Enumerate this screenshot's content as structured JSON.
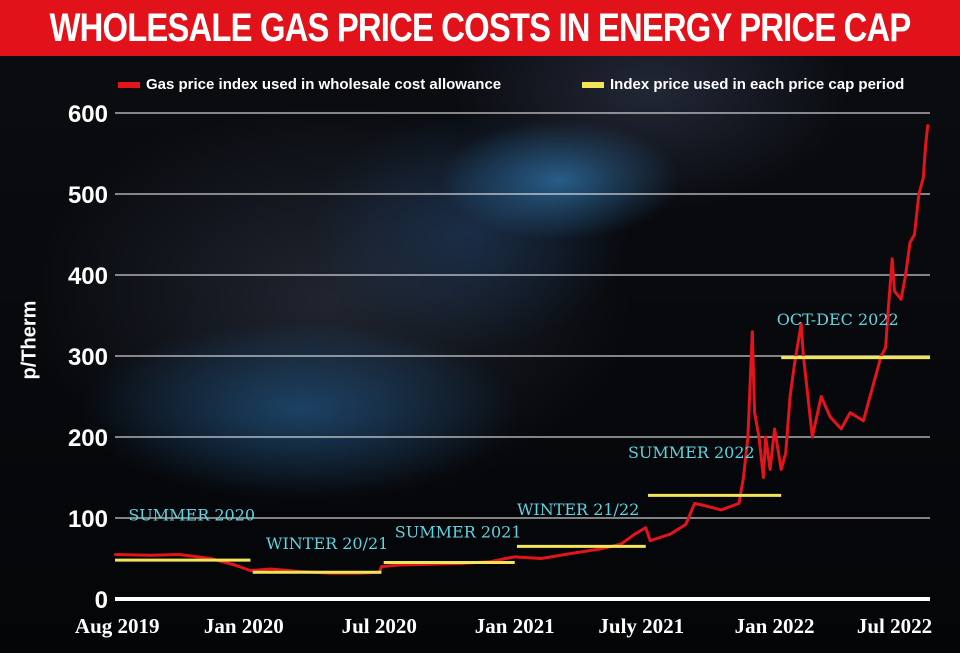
{
  "chart_data": {
    "type": "line",
    "title": "WHOLESALE GAS PRICE COSTS IN ENERGY PRICE CAP",
    "xlabel": "",
    "ylabel": "p/Therm",
    "ylim": [
      0,
      600
    ],
    "yticks": [
      0,
      100,
      200,
      300,
      400,
      500,
      600
    ],
    "xlim": [
      -0.1,
      36.6
    ],
    "x_unit": "months since Aug 2019",
    "xticks": [
      {
        "x": 0,
        "label": "Aug 2019"
      },
      {
        "x": 5.7,
        "label": "Jan 2020"
      },
      {
        "x": 11.8,
        "label": "Jul 2020"
      },
      {
        "x": 17.9,
        "label": "Jan 2021"
      },
      {
        "x": 23.6,
        "label": "July 2021"
      },
      {
        "x": 29.6,
        "label": "Jan 2022"
      },
      {
        "x": 35.0,
        "label": "Jul 2022"
      }
    ],
    "grid": true,
    "legend": [
      {
        "label": "Gas price index used in wholesale cost allowance",
        "color": "#e3141b"
      },
      {
        "label": "Index price used in each price cap period",
        "color": "#f2e55a"
      }
    ],
    "series": [
      {
        "name": "Gas price index used in wholesale cost allowance",
        "color": "#e3141b",
        "x": [
          -0.1,
          1.5,
          2.8,
          4.2,
          5.3,
          6.0,
          6.9,
          8.2,
          9.6,
          10.9,
          11.8,
          11.9,
          12.7,
          14.1,
          15.5,
          16.8,
          17.5,
          17.9,
          19.1,
          20.4,
          21.8,
          22.7,
          23.3,
          23.8,
          24.0,
          24.9,
          25.6,
          26.0,
          26.5,
          27.2,
          28.0,
          28.2,
          28.4,
          28.6,
          28.7,
          28.9,
          29.1,
          29.2,
          29.4,
          29.6,
          29.9,
          30.1,
          30.3,
          30.5,
          30.8,
          30.9,
          31.1,
          31.3,
          31.7,
          32.1,
          32.6,
          33.0,
          33.6,
          33.9,
          34.2,
          34.4,
          34.6,
          34.7,
          34.9,
          35.0,
          35.3,
          35.5,
          35.7,
          35.9,
          36.1,
          36.3,
          36.4,
          36.5
        ],
        "y": [
          55,
          54,
          55,
          50,
          42,
          35,
          37,
          34,
          32,
          32,
          33,
          40,
          42,
          43,
          44,
          46,
          50,
          52,
          50,
          56,
          62,
          68,
          80,
          88,
          72,
          80,
          92,
          118,
          115,
          110,
          118,
          150,
          200,
          330,
          230,
          200,
          150,
          200,
          160,
          210,
          160,
          180,
          250,
          290,
          340,
          300,
          250,
          200,
          250,
          225,
          210,
          230,
          220,
          250,
          280,
          300,
          310,
          350,
          420,
          380,
          370,
          400,
          440,
          450,
          500,
          520,
          560,
          585
        ]
      },
      {
        "name": "Index price used in each price cap period",
        "color": "#f2e55a",
        "segments": [
          {
            "x0": -0.1,
            "x1": 6.0,
            "y": 48
          },
          {
            "x0": 6.1,
            "x1": 11.9,
            "y": 33
          },
          {
            "x0": 12.0,
            "x1": 17.9,
            "y": 45
          },
          {
            "x0": 18.0,
            "x1": 23.8,
            "y": 65
          },
          {
            "x0": 23.9,
            "x1": 29.9,
            "y": 128
          },
          {
            "x0": 29.9,
            "x1": 36.6,
            "y": 298
          }
        ]
      }
    ],
    "annotations": [
      {
        "x": 0.5,
        "y": 97,
        "text": "SUMMER 2020"
      },
      {
        "x": 6.7,
        "y": 62,
        "text": "WINTER 20/21"
      },
      {
        "x": 12.5,
        "y": 76,
        "text": "SUMMER 2021"
      },
      {
        "x": 18.0,
        "y": 104,
        "text": "WINTER 21/22"
      },
      {
        "x": 23.0,
        "y": 174,
        "text": "SUMMER 2022"
      },
      {
        "x": 29.7,
        "y": 338,
        "text": "OCT-DEC 2022"
      }
    ]
  }
}
